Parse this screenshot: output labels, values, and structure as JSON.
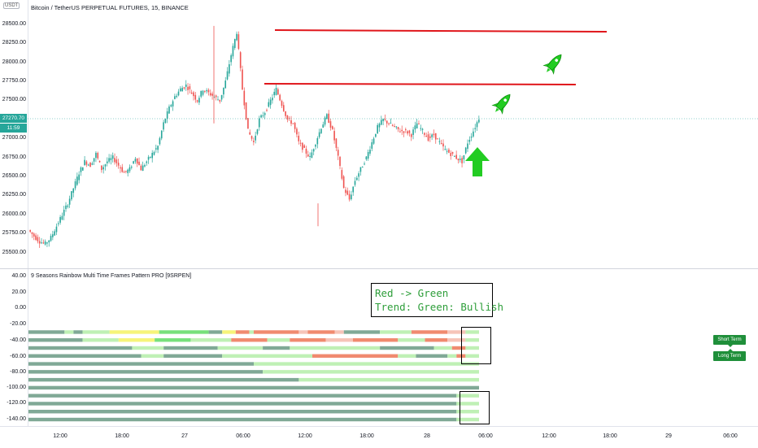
{
  "header": {
    "symbol_title": "Bitcoin / TetherUS PERPETUAL FUTURES, 15, BINANCE",
    "currency": "USDT",
    "price_badge": "27270.70",
    "time_badge": "11:59"
  },
  "indicator": {
    "title": "9 Seasons Rainbow Multi Time Frames Pattern PRO [9SRPEN]",
    "annotation_line1": "Red -> Green",
    "annotation_line2": "Trend: Green: Bullish",
    "legend_short": "Short Term",
    "legend_long": "Long Term"
  },
  "colors": {
    "up": "#26a69a",
    "down": "#ef5350",
    "drawing_line": "#e0161b",
    "rocket": "#22cc22",
    "arrow": "#22cc22",
    "band_dark_green": "#80a996",
    "band_light_green": "#bff0b5",
    "band_red": "#f08a6f",
    "band_pink": "#f6c4b8",
    "band_yellow": "#f6f47a",
    "band_green": "#78e07c"
  },
  "icons": [
    "rocket-icon",
    "rocket-icon",
    "up-arrow-icon"
  ],
  "price_axis": [
    "28500.00",
    "28250.00",
    "28000.00",
    "27750.00",
    "27500.00",
    "27000.00",
    "26750.00",
    "26500.00",
    "26250.00",
    "26000.00",
    "25750.00",
    "25500.00"
  ],
  "indicator_axis": [
    "40.00",
    "20.00",
    "0.00",
    "-20.00",
    "-40.00",
    "-60.00",
    "-80.00",
    "-100.00",
    "-120.00",
    "-140.00"
  ],
  "time_axis": [
    "12:00",
    "18:00",
    "27",
    "06:00",
    "12:00",
    "18:00",
    "28",
    "06:00",
    "12:00",
    "18:00",
    "29",
    "06:00"
  ],
  "chart_data": {
    "type": "candlestick",
    "title": "Bitcoin / TetherUS PERPETUAL FUTURES, 15, BINANCE",
    "x_ticks": [
      "12:00",
      "18:00",
      "27",
      "06:00",
      "12:00",
      "18:00",
      "28",
      "06:00",
      "12:00",
      "18:00",
      "29",
      "06:00"
    ],
    "ylim": [
      25450,
      28700
    ],
    "close_path": [
      25800,
      25720,
      25650,
      25620,
      25700,
      25850,
      26000,
      26150,
      26350,
      26550,
      26700,
      26650,
      26800,
      26600,
      26700,
      26750,
      26650,
      26550,
      26600,
      26750,
      26600,
      26700,
      26800,
      26900,
      27200,
      27400,
      27550,
      27650,
      27700,
      27600,
      27500,
      27650,
      27600,
      27550,
      27500,
      27750,
      28100,
      28400,
      27650,
      27100,
      26950,
      27250,
      27350,
      27500,
      27650,
      27450,
      27250,
      27200,
      26950,
      26850,
      26750,
      26950,
      27150,
      27300,
      27100,
      26750,
      26350,
      26200,
      26450,
      26600,
      26750,
      26950,
      27150,
      27250,
      27200,
      27150,
      27100,
      27100,
      27050,
      27200,
      27100,
      27000,
      27050,
      26950,
      26850,
      26800,
      26750,
      26700,
      26950,
      27100,
      27270.7
    ],
    "horizontal_levels": [
      28430,
      27700
    ]
  },
  "indicator_rows": [
    {
      "y": -30,
      "segments": [
        [
          "dark",
          0.0,
          0.08
        ],
        [
          "light",
          0.08,
          0.1
        ],
        [
          "dark",
          0.1,
          0.12
        ],
        [
          "light",
          0.12,
          0.18
        ],
        [
          "yellow",
          0.18,
          0.29
        ],
        [
          "green",
          0.29,
          0.4
        ],
        [
          "dark",
          0.4,
          0.43
        ],
        [
          "yellow",
          0.43,
          0.46
        ],
        [
          "red",
          0.46,
          0.49
        ],
        [
          "light",
          0.49,
          0.5
        ],
        [
          "red",
          0.5,
          0.6
        ],
        [
          "pink",
          0.6,
          0.62
        ],
        [
          "red",
          0.62,
          0.68
        ],
        [
          "pink",
          0.68,
          0.7
        ],
        [
          "dark",
          0.7,
          0.78
        ],
        [
          "light",
          0.78,
          0.85
        ],
        [
          "red",
          0.85,
          0.93
        ],
        [
          "pink",
          0.93,
          0.97
        ],
        [
          "light",
          0.97,
          1.0
        ]
      ]
    },
    {
      "y": -40,
      "segments": [
        [
          "dark",
          0.0,
          0.12
        ],
        [
          "light",
          0.12,
          0.2
        ],
        [
          "yellow",
          0.2,
          0.28
        ],
        [
          "green",
          0.28,
          0.36
        ],
        [
          "light",
          0.36,
          0.45
        ],
        [
          "red",
          0.45,
          0.53
        ],
        [
          "light",
          0.53,
          0.58
        ],
        [
          "red",
          0.58,
          0.66
        ],
        [
          "pink",
          0.66,
          0.72
        ],
        [
          "red",
          0.72,
          0.82
        ],
        [
          "light",
          0.82,
          0.88
        ],
        [
          "red",
          0.88,
          0.93
        ],
        [
          "pink",
          0.93,
          0.97
        ],
        [
          "light",
          0.97,
          1.0
        ]
      ]
    },
    {
      "y": -50,
      "segments": [
        [
          "dark",
          0.0,
          0.23
        ],
        [
          "light",
          0.23,
          0.3
        ],
        [
          "dark",
          0.3,
          0.42
        ],
        [
          "light",
          0.42,
          0.52
        ],
        [
          "dark",
          0.52,
          0.58
        ],
        [
          "light",
          0.58,
          0.78
        ],
        [
          "dark",
          0.78,
          0.9
        ],
        [
          "light",
          0.9,
          0.94
        ],
        [
          "red",
          0.94,
          0.97
        ],
        [
          "light",
          0.97,
          1.0
        ]
      ]
    },
    {
      "y": -60,
      "segments": [
        [
          "dark",
          0.0,
          0.25
        ],
        [
          "light",
          0.25,
          0.3
        ],
        [
          "dark",
          0.3,
          0.43
        ],
        [
          "light",
          0.43,
          0.63
        ],
        [
          "red",
          0.63,
          0.82
        ],
        [
          "light",
          0.82,
          0.86
        ],
        [
          "dark",
          0.86,
          0.93
        ],
        [
          "light",
          0.93,
          0.95
        ],
        [
          "red",
          0.95,
          0.97
        ],
        [
          "light",
          0.97,
          1.0
        ]
      ]
    },
    {
      "y": -70,
      "segments": [
        [
          "dark",
          0.0,
          0.5
        ],
        [
          "light",
          0.5,
          1.0
        ]
      ]
    },
    {
      "y": -80,
      "segments": [
        [
          "dark",
          0.0,
          0.52
        ],
        [
          "light",
          0.52,
          1.0
        ]
      ]
    },
    {
      "y": -90,
      "segments": [
        [
          "dark",
          0.0,
          0.6
        ],
        [
          "light",
          0.6,
          1.0
        ]
      ]
    },
    {
      "y": -100,
      "segments": [
        [
          "dark",
          0.0,
          1.0
        ]
      ]
    },
    {
      "y": -110,
      "segments": [
        [
          "dark",
          0.0,
          0.95
        ],
        [
          "light",
          0.95,
          1.0
        ]
      ]
    },
    {
      "y": -120,
      "segments": [
        [
          "dark",
          0.0,
          0.95
        ],
        [
          "light",
          0.95,
          1.0
        ]
      ]
    },
    {
      "y": -130,
      "segments": [
        [
          "dark",
          0.0,
          0.95
        ],
        [
          "light",
          0.95,
          1.0
        ]
      ]
    },
    {
      "y": -140,
      "segments": [
        [
          "dark",
          0.0,
          0.95
        ],
        [
          "light",
          0.95,
          1.0
        ]
      ]
    }
  ]
}
